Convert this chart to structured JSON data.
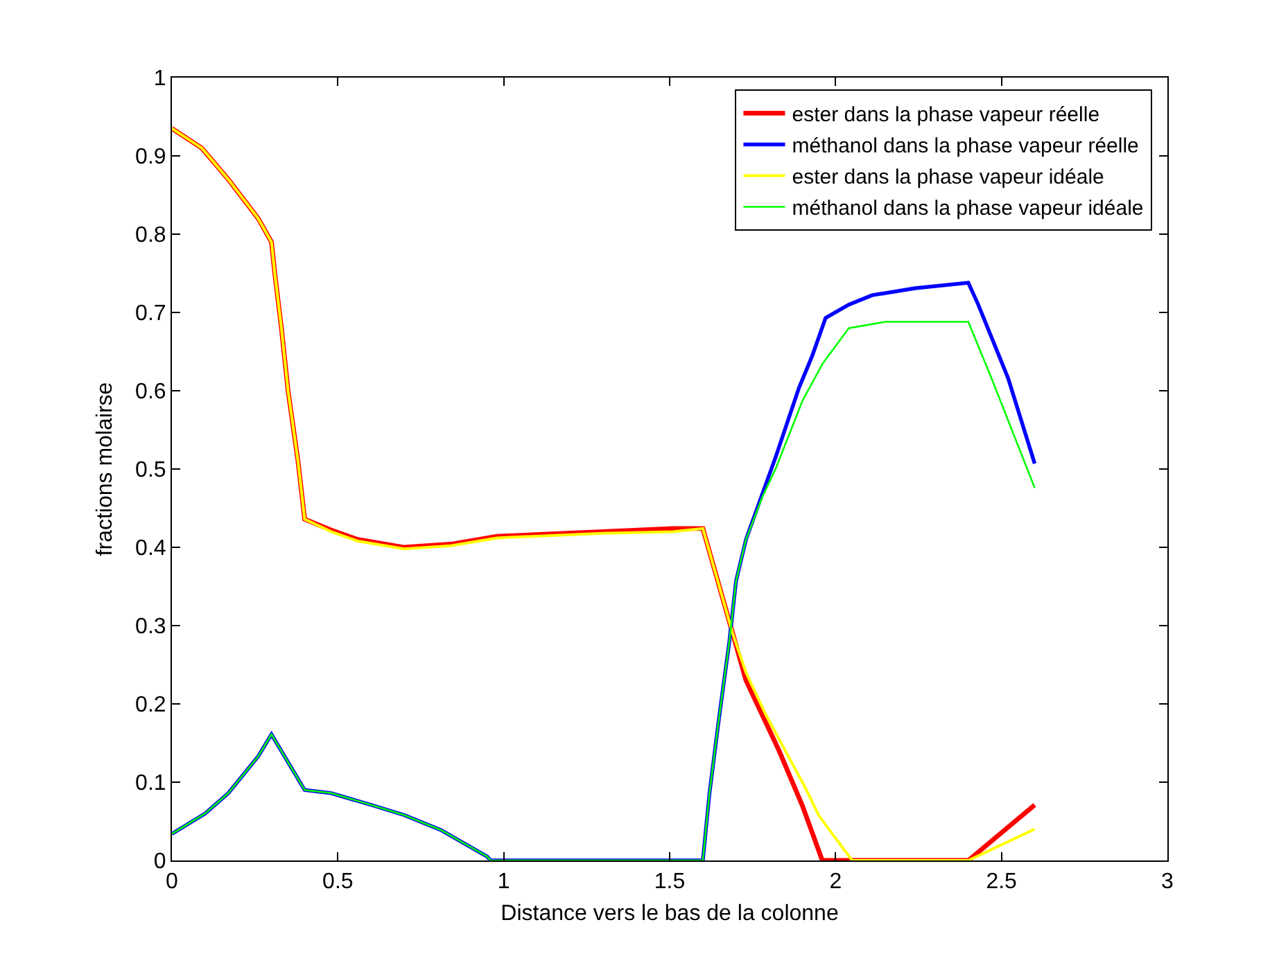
{
  "chart_data": {
    "type": "line",
    "xlabel": "Distance vers le bas de la colonne",
    "ylabel": "fractions molairse",
    "xlim": [
      0,
      3
    ],
    "xticks": [
      0,
      0.5,
      1,
      1.5,
      2,
      2.5,
      3
    ],
    "ylim": [
      0,
      1
    ],
    "yticks": [
      0,
      0.1,
      0.2,
      0.3,
      0.4,
      0.5,
      0.6,
      0.7,
      0.8,
      0.9,
      1
    ],
    "grid": false,
    "legend": "top right",
    "marker": "none",
    "line_style": "solid",
    "series": [
      {
        "name": "ester dans la phase vapeur réelle",
        "color": "#ff0000",
        "x": [
          0,
          0.09,
          0.17,
          0.26,
          0.3,
          0.31,
          0.33,
          0.35,
          0.38,
          0.4,
          0.48,
          0.56,
          0.7,
          0.84,
          0.98,
          1.3,
          1.51,
          1.6,
          1.69,
          1.73,
          1.83,
          1.9,
          1.96,
          2.4,
          2.6
        ],
        "values": [
          0.935,
          0.91,
          0.87,
          0.82,
          0.79,
          0.75,
          0.68,
          0.6,
          0.51,
          0.436,
          0.422,
          0.41,
          0.4,
          0.404,
          0.414,
          0.42,
          0.424,
          0.424,
          0.29,
          0.23,
          0.14,
          0.07,
          0,
          0,
          0.071
        ]
      },
      {
        "name": "méthanol dans la phase vapeur réelle",
        "color": "#0000ff",
        "x": [
          0,
          0.1,
          0.17,
          0.26,
          0.3,
          0.4,
          0.48,
          0.6,
          0.7,
          0.81,
          0.95,
          0.96,
          1.6,
          1.62,
          1.65,
          1.68,
          1.7,
          1.73,
          1.78,
          1.82,
          1.89,
          1.93,
          1.97,
          2.04,
          2.11,
          2.24,
          2.4,
          2.43,
          2.52,
          2.6
        ],
        "values": [
          0.034,
          0.06,
          0.086,
          0.133,
          0.161,
          0.09,
          0.086,
          0.071,
          0.058,
          0.039,
          0.005,
          0,
          0,
          0.086,
          0.186,
          0.28,
          0.357,
          0.41,
          0.469,
          0.516,
          0.604,
          0.645,
          0.693,
          0.71,
          0.722,
          0.731,
          0.738,
          0.71,
          0.616,
          0.507
        ]
      },
      {
        "name": "ester dans la phase vapeur idéale",
        "color": "#ffff00",
        "x": [
          0,
          0.09,
          0.17,
          0.26,
          0.3,
          0.31,
          0.33,
          0.35,
          0.38,
          0.4,
          0.48,
          0.56,
          0.7,
          0.84,
          0.98,
          1.3,
          1.51,
          1.6,
          1.69,
          1.73,
          1.79,
          1.91,
          1.95,
          2.05,
          2.4,
          2.6
        ],
        "values": [
          0.935,
          0.91,
          0.87,
          0.82,
          0.79,
          0.75,
          0.68,
          0.6,
          0.51,
          0.436,
          0.42,
          0.408,
          0.398,
          0.402,
          0.412,
          0.418,
          0.42,
          0.424,
          0.29,
          0.24,
          0.186,
          0.092,
          0.057,
          0,
          0,
          0.04
        ]
      },
      {
        "name": "méthanol dans la phase vapeur idéale",
        "color": "#00ff00",
        "x": [
          0,
          0.1,
          0.17,
          0.26,
          0.3,
          0.4,
          0.48,
          0.6,
          0.7,
          0.81,
          0.95,
          0.96,
          1.6,
          1.62,
          1.65,
          1.68,
          1.7,
          1.73,
          1.78,
          1.82,
          1.9,
          1.96,
          2.04,
          2.15,
          2.4,
          2.47,
          2.6
        ],
        "values": [
          0.034,
          0.06,
          0.086,
          0.133,
          0.161,
          0.09,
          0.086,
          0.071,
          0.058,
          0.039,
          0.005,
          0,
          0,
          0.086,
          0.186,
          0.28,
          0.357,
          0.41,
          0.465,
          0.501,
          0.587,
          0.634,
          0.68,
          0.688,
          0.688,
          0.616,
          0.476
        ]
      }
    ]
  }
}
